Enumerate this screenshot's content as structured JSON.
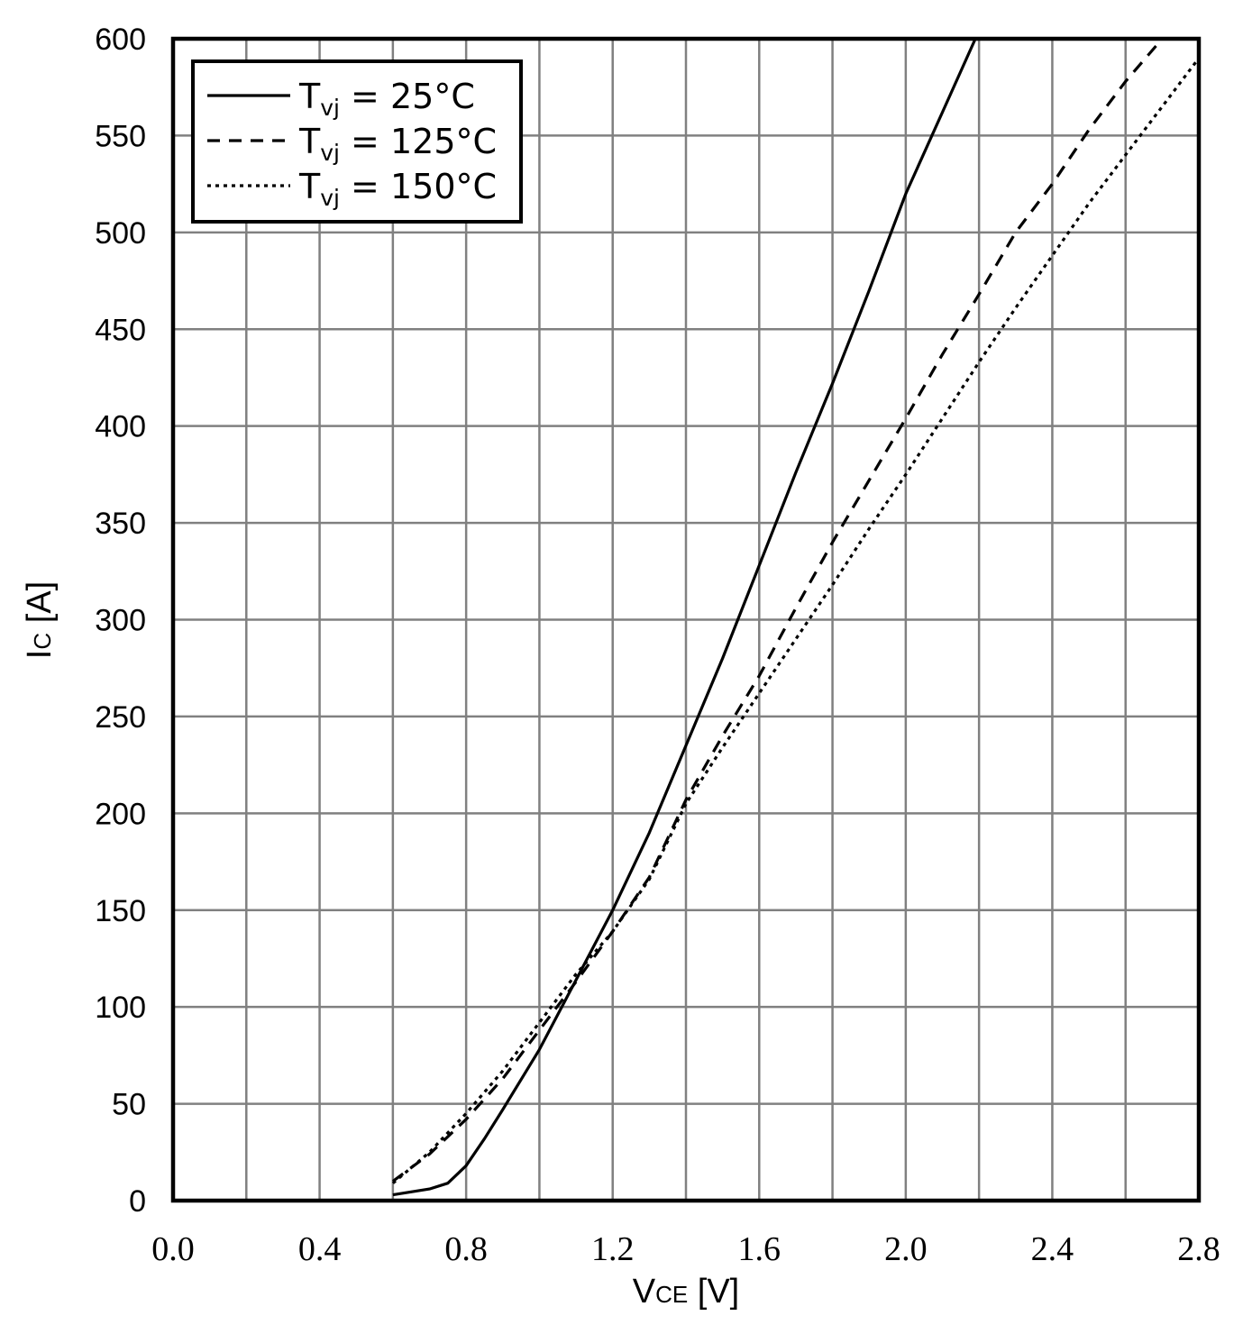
{
  "chart_data": {
    "type": "line",
    "xlabel": {
      "main": "V",
      "sub": "CE",
      "unit": " [V]"
    },
    "ylabel": {
      "main": "I",
      "sub": "C",
      "unit": " [A]"
    },
    "xlim": [
      0,
      2.8
    ],
    "ylim": [
      0,
      600
    ],
    "x_ticks": [
      0.0,
      0.4,
      0.8,
      1.2,
      1.6,
      2.0,
      2.4,
      2.8
    ],
    "x_tick_labels": [
      "0.0",
      "0.4",
      "0.8",
      "1.2",
      "1.6",
      "2.0",
      "2.4",
      "2.8"
    ],
    "x_grid_step": 0.2,
    "y_ticks": [
      0,
      50,
      100,
      150,
      200,
      250,
      300,
      350,
      400,
      450,
      500,
      550,
      600
    ],
    "y_tick_labels": [
      "0",
      "50",
      "100",
      "150",
      "200",
      "250",
      "300",
      "350",
      "400",
      "450",
      "500",
      "550",
      "600"
    ],
    "grid": true,
    "legend_position": "top-left",
    "series": [
      {
        "name": {
          "main": "T",
          "sub": "vj",
          "rest": " = 25°C"
        },
        "dash": "solid",
        "points": [
          [
            0.6,
            3
          ],
          [
            0.7,
            6
          ],
          [
            0.75,
            9
          ],
          [
            0.8,
            18
          ],
          [
            0.85,
            32
          ],
          [
            0.9,
            47
          ],
          [
            1.0,
            78
          ],
          [
            1.1,
            114
          ],
          [
            1.2,
            150
          ],
          [
            1.3,
            190
          ],
          [
            1.4,
            235
          ],
          [
            1.5,
            280
          ],
          [
            1.6,
            328
          ],
          [
            1.7,
            376
          ],
          [
            1.8,
            422
          ],
          [
            1.9,
            470
          ],
          [
            2.0,
            520
          ],
          [
            2.1,
            562
          ],
          [
            2.19,
            600
          ]
        ]
      },
      {
        "name": {
          "main": "T",
          "sub": "vj",
          "rest": " = 125°C"
        },
        "dash": "dashed",
        "points": [
          [
            0.6,
            10
          ],
          [
            0.7,
            24
          ],
          [
            0.8,
            42
          ],
          [
            0.9,
            63
          ],
          [
            1.0,
            88
          ],
          [
            1.1,
            113
          ],
          [
            1.2,
            139
          ],
          [
            1.3,
            167
          ],
          [
            1.4,
            207
          ],
          [
            1.5,
            240
          ],
          [
            1.6,
            271
          ],
          [
            1.7,
            306
          ],
          [
            1.8,
            340
          ],
          [
            1.9,
            372
          ],
          [
            2.0,
            404
          ],
          [
            2.1,
            437
          ],
          [
            2.2,
            468
          ],
          [
            2.3,
            500
          ],
          [
            2.4,
            525
          ],
          [
            2.5,
            553
          ],
          [
            2.6,
            578
          ],
          [
            2.7,
            600
          ]
        ]
      },
      {
        "name": {
          "main": "T",
          "sub": "vj",
          "rest": " = 150°C"
        },
        "dash": "dotted",
        "points": [
          [
            0.6,
            9
          ],
          [
            0.7,
            25
          ],
          [
            0.8,
            45
          ],
          [
            0.9,
            67
          ],
          [
            1.0,
            92
          ],
          [
            1.1,
            117
          ],
          [
            1.2,
            139
          ],
          [
            1.3,
            166
          ],
          [
            1.4,
            205
          ],
          [
            1.5,
            234
          ],
          [
            1.6,
            262
          ],
          [
            1.7,
            290
          ],
          [
            1.8,
            318
          ],
          [
            1.9,
            347
          ],
          [
            2.0,
            375
          ],
          [
            2.1,
            404
          ],
          [
            2.2,
            433
          ],
          [
            2.3,
            461
          ],
          [
            2.4,
            488
          ],
          [
            2.5,
            515
          ],
          [
            2.6,
            540
          ],
          [
            2.7,
            565
          ],
          [
            2.8,
            590
          ]
        ]
      }
    ]
  }
}
